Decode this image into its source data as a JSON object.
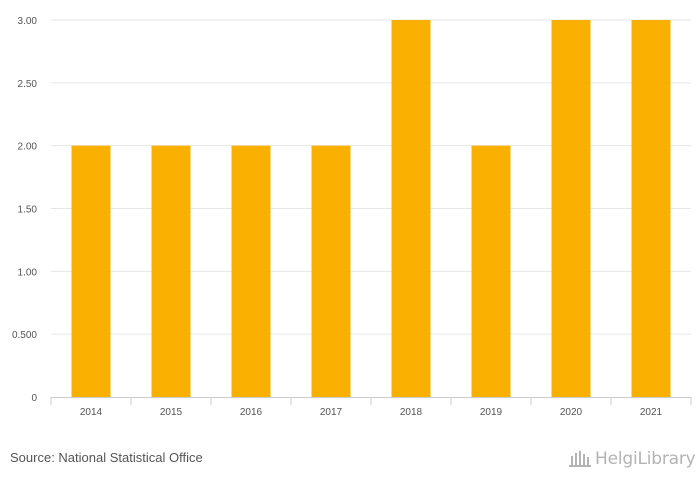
{
  "chart_data": {
    "type": "bar",
    "categories": [
      "2014",
      "2015",
      "2016",
      "2017",
      "2018",
      "2019",
      "2020",
      "2021"
    ],
    "values": [
      2,
      2,
      2,
      2,
      3,
      2,
      3,
      3
    ],
    "ylim": [
      0,
      3
    ],
    "yticks": [
      0,
      0.5,
      1.0,
      1.5,
      2.0,
      2.5,
      3.0
    ],
    "ytick_labels": [
      "0",
      "0.500",
      "1.00",
      "1.50",
      "2.00",
      "2.50",
      "3.00"
    ],
    "title": "",
    "xlabel": "",
    "ylabel": "",
    "grid": true,
    "bar_color": "#F9B000"
  },
  "footer": {
    "source": "Source: National Statistical Office",
    "logo_text": "HelgiLibrary"
  }
}
